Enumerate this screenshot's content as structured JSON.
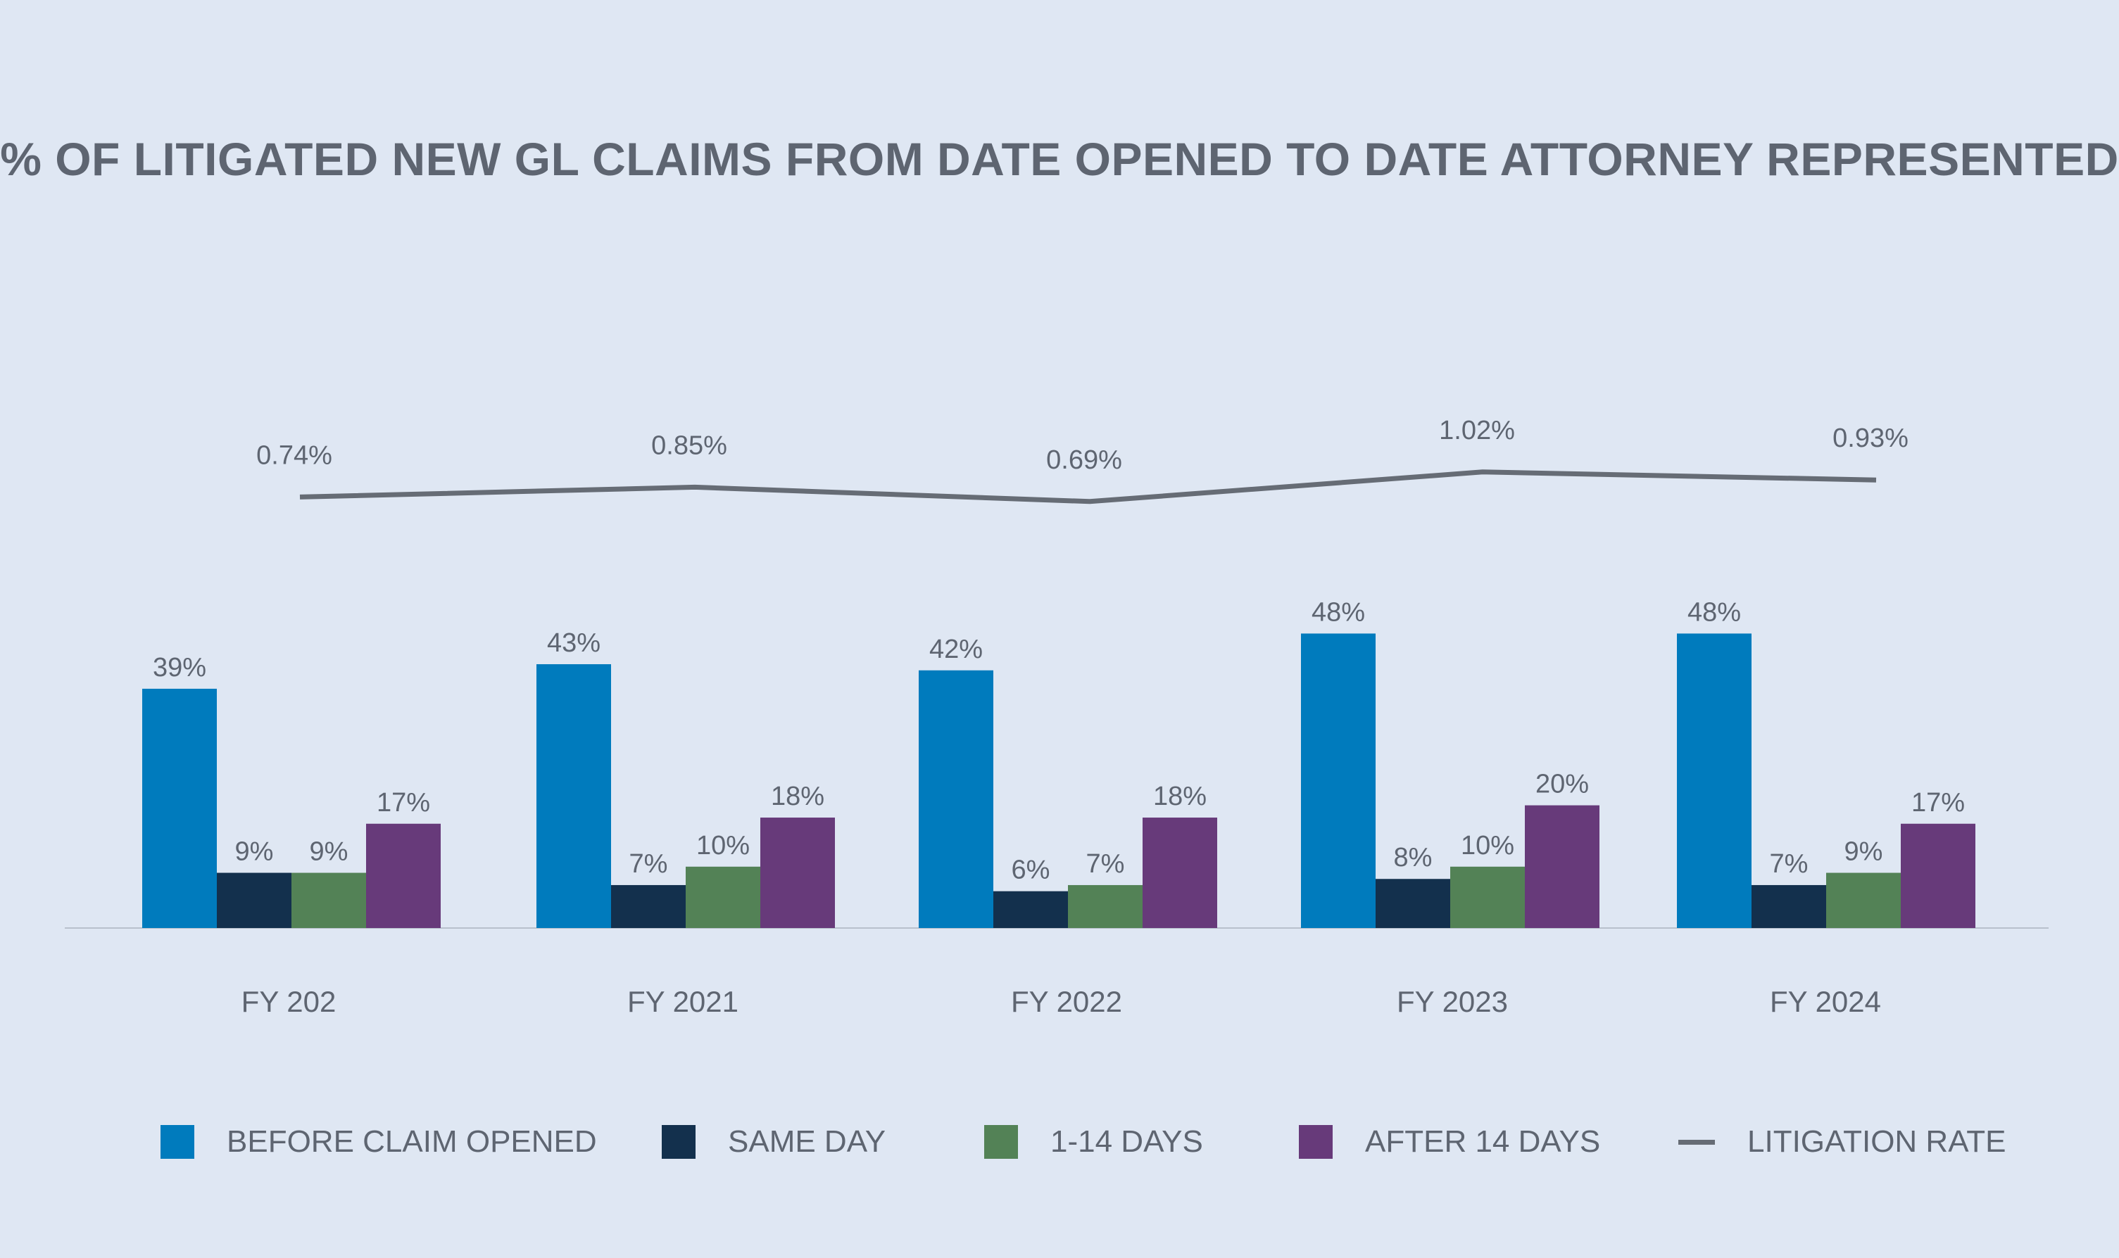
{
  "colors": {
    "background": "#dfe7f3",
    "before_claim_opened": "#007bbd",
    "same_day": "#13304d",
    "one_to_fourteen_days": "#538256",
    "after_14_days": "#673a7a",
    "litigation_rate": "#666c75",
    "text": "#5e6571",
    "axis": "#b8c0cc"
  },
  "chart_data": {
    "type": "bar",
    "title": "% OF LITIGATED NEW GL CLAIMS FROM DATE OPENED TO DATE ATTORNEY REPRESENTED",
    "categories": [
      "FY 202",
      "FY 2021",
      "FY 2022",
      "FY 2023",
      "FY 2024"
    ],
    "series": [
      {
        "name": "BEFORE CLAIM OPENED",
        "values": [
          39,
          43,
          42,
          48,
          48
        ],
        "labels": [
          "39%",
          "43%",
          "42%",
          "48%",
          "48%"
        ],
        "color": "#007bbd"
      },
      {
        "name": "SAME DAY",
        "values": [
          9,
          7,
          6,
          8,
          7
        ],
        "labels": [
          "9%",
          "7%",
          "6%",
          "8%",
          "7%"
        ],
        "color": "#13304d"
      },
      {
        "name": "1-14 DAYS",
        "values": [
          9,
          10,
          7,
          10,
          9
        ],
        "labels": [
          "9%",
          "10%",
          "7%",
          "10%",
          "9%"
        ],
        "color": "#538256"
      },
      {
        "name": "AFTER 14 DAYS",
        "values": [
          17,
          18,
          18,
          20,
          17
        ],
        "labels": [
          "17%",
          "18%",
          "18%",
          "20%",
          "17%"
        ],
        "color": "#673a7a"
      }
    ],
    "line_series": {
      "name": "LITIGATION RATE",
      "type": "line",
      "values": [
        0.74,
        0.85,
        0.69,
        1.02,
        0.93
      ],
      "labels": [
        "0.74%",
        "0.85%",
        "0.69%",
        "1.02%",
        "0.93%"
      ],
      "color": "#666c75"
    },
    "grid": false,
    "legend": "bottom"
  }
}
